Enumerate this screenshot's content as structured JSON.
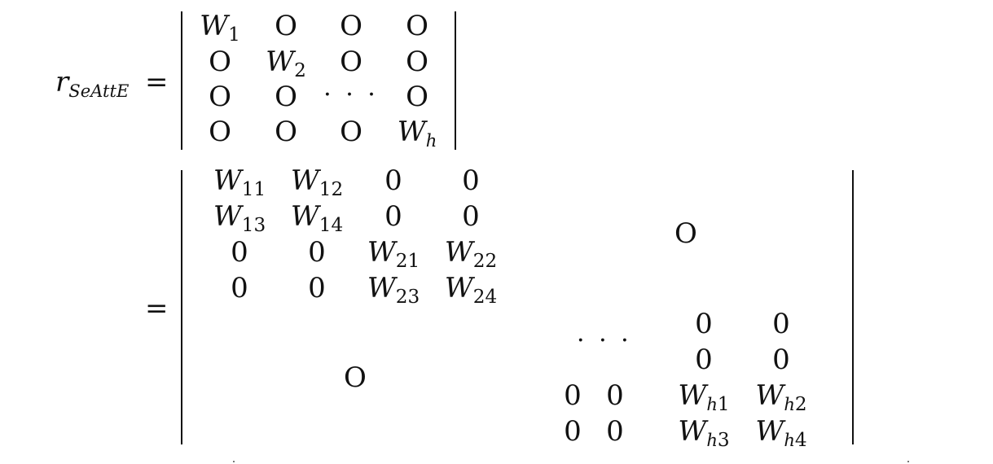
{
  "lhs": {
    "base": "r",
    "subscript": "SeAttE"
  },
  "eq1": "=",
  "eq2": "=",
  "m1": [
    [
      {
        "b": "W",
        "s": "1"
      },
      {
        "t": "O"
      },
      {
        "t": "O"
      },
      {
        "t": "O"
      }
    ],
    [
      {
        "t": "O"
      },
      {
        "b": "W",
        "s": "2"
      },
      {
        "t": "O"
      },
      {
        "t": "O"
      }
    ],
    [
      {
        "t": "O"
      },
      {
        "t": "O"
      },
      {
        "d": "· · ·"
      },
      {
        "t": "O"
      }
    ],
    [
      {
        "t": "O"
      },
      {
        "t": "O"
      },
      {
        "t": "O"
      },
      {
        "b": "W",
        "si": "h"
      }
    ]
  ],
  "m2": {
    "topleft": [
      [
        {
          "b": "W",
          "s": "11"
        },
        {
          "b": "W",
          "s": "12"
        },
        {
          "t": "0"
        },
        {
          "t": "0"
        }
      ],
      [
        {
          "b": "W",
          "s": "13"
        },
        {
          "b": "W",
          "s": "14"
        },
        {
          "t": "0"
        },
        {
          "t": "0"
        }
      ],
      [
        {
          "t": "0"
        },
        {
          "t": "0"
        },
        {
          "b": "W",
          "s": "21"
        },
        {
          "b": "W",
          "s": "22"
        }
      ],
      [
        {
          "t": "0"
        },
        {
          "t": "0"
        },
        {
          "b": "W",
          "s": "23"
        },
        {
          "b": "W",
          "s": "24"
        }
      ]
    ],
    "topright_block": "O",
    "bottomleft_block": "O",
    "dots": "· · ·",
    "bottomright": [
      [
        {
          "t": ""
        },
        {
          "t": ""
        },
        {
          "t": "0"
        },
        {
          "t": "0"
        }
      ],
      [
        {
          "t": ""
        },
        {
          "t": ""
        },
        {
          "t": "0"
        },
        {
          "t": "0"
        }
      ],
      [
        {
          "t": "0"
        },
        {
          "t": "0"
        },
        {
          "b": "W",
          "si": "h",
          "s": "1"
        },
        {
          "b": "W",
          "si": "h",
          "s": "2"
        }
      ],
      [
        {
          "t": "0"
        },
        {
          "t": "0"
        },
        {
          "b": "W",
          "si": "h",
          "s": "3"
        },
        {
          "b": "W",
          "si": "h",
          "s": "4"
        }
      ]
    ]
  }
}
